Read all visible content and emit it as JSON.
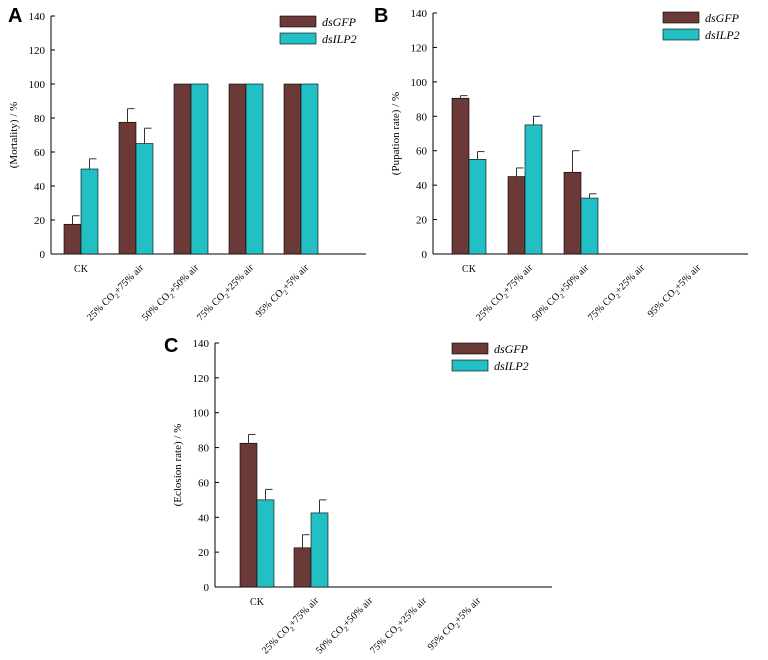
{
  "colors": {
    "dsGFP": "#6b3a38",
    "dsILP2": "#22c0c4"
  },
  "chart_data": [
    {
      "panel": "A",
      "type": "bar",
      "ylabel": "(Mortality) / %",
      "ylim": [
        0,
        140
      ],
      "yticks": [
        "0",
        "20",
        "40",
        "60",
        "80",
        "100",
        "120",
        "140"
      ],
      "legend_position": "top-right",
      "categories": [
        "CK",
        "25% CO2+75% air",
        "50% CO2+50% air",
        "75% CO2+25% air",
        "95% CO2+5% air"
      ],
      "series": [
        {
          "name": "dsGFP",
          "values": [
            17.5,
            77.5,
            100,
            100,
            100
          ],
          "errors": [
            5,
            8,
            0,
            0,
            0
          ]
        },
        {
          "name": "dsILP2",
          "values": [
            50,
            65,
            100,
            100,
            100
          ],
          "errors": [
            6,
            9,
            0,
            0,
            0
          ]
        }
      ]
    },
    {
      "panel": "B",
      "type": "bar",
      "ylabel": "(Pupation rate) / %",
      "ylim": [
        0,
        140
      ],
      "yticks": [
        "0",
        "20",
        "40",
        "60",
        "80",
        "100",
        "120",
        "140"
      ],
      "legend_position": "top-right",
      "categories": [
        "CK",
        "25% CO2+75% air",
        "50% CO2+50% air",
        "75% CO2+25% air",
        "95% CO2+5% air"
      ],
      "series": [
        {
          "name": "dsGFP",
          "values": [
            90.5,
            45,
            47.5,
            0,
            0
          ],
          "errors": [
            1.5,
            5,
            12.5,
            0,
            0
          ]
        },
        {
          "name": "dsILP2",
          "values": [
            55,
            75,
            32.5,
            0,
            0
          ],
          "errors": [
            4.5,
            5,
            2.5,
            0,
            0
          ]
        }
      ]
    },
    {
      "panel": "C",
      "type": "bar",
      "ylabel": "(Eclosion rate) / %",
      "ylim": [
        0,
        140
      ],
      "yticks": [
        "0",
        "20",
        "40",
        "60",
        "80",
        "100",
        "120",
        "140"
      ],
      "legend_position": "top-right",
      "categories": [
        "CK",
        "25% CO2+75% air",
        "50% CO2+50% air",
        "75% CO2+25% air",
        "95% CO2+5% air"
      ],
      "series": [
        {
          "name": "dsGFP",
          "values": [
            82.5,
            22.5,
            0,
            0,
            0
          ],
          "errors": [
            5,
            7.5,
            0,
            0,
            0
          ]
        },
        {
          "name": "dsILP2",
          "values": [
            50,
            42.5,
            0,
            0,
            0
          ],
          "errors": [
            6,
            7.5,
            0,
            0,
            0
          ]
        }
      ]
    }
  ]
}
